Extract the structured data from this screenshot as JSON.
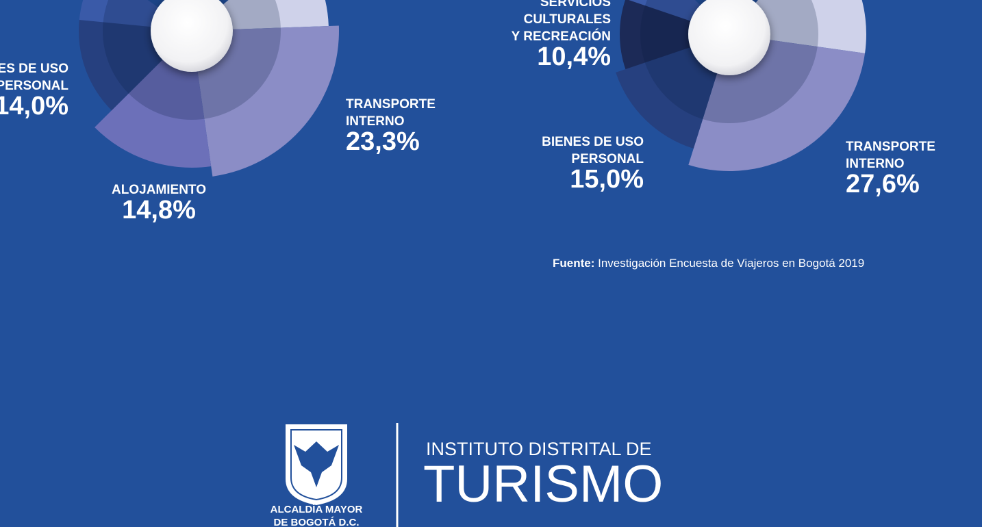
{
  "chart_data": [
    {
      "type": "donut",
      "categories": [
        [
          "TRANSPORTE",
          "INTERNO"
        ],
        [
          "ALOJAMIENTO"
        ],
        [
          "BIENES DE USO",
          "PERSONAL"
        ]
      ],
      "values": [
        23.3,
        14.8,
        14.0
      ],
      "value_labels": [
        "23,3%",
        "14,8%",
        "14,0%"
      ],
      "colors": [
        "#8b8dc6",
        "#6c70b9",
        "#26407f"
      ]
    },
    {
      "type": "donut",
      "categories": [
        [
          "TRANSPORTE",
          "INTERNO"
        ],
        [
          "BIENES DE USO",
          "PERSONAL"
        ],
        [
          "SERVICIOS",
          "CULTURALES",
          "Y RECREACIÓN"
        ]
      ],
      "values": [
        27.6,
        15.0,
        10.4
      ],
      "value_labels": [
        "27,6%",
        "15,0%",
        "10,4%"
      ],
      "colors": [
        "#8b8dc6",
        "#26407f",
        "#1c2a57"
      ]
    }
  ],
  "source": {
    "label": "Fuente:",
    "text": "Investigación Encuesta de Viajeros en Bogotá 2019"
  },
  "logo": {
    "alcaldia": [
      "ALCALDÍA MAYOR",
      "DE BOGOTÁ D.C."
    ],
    "institute": "INSTITUTO DISTRITAL DE",
    "name": "TURISMO"
  }
}
